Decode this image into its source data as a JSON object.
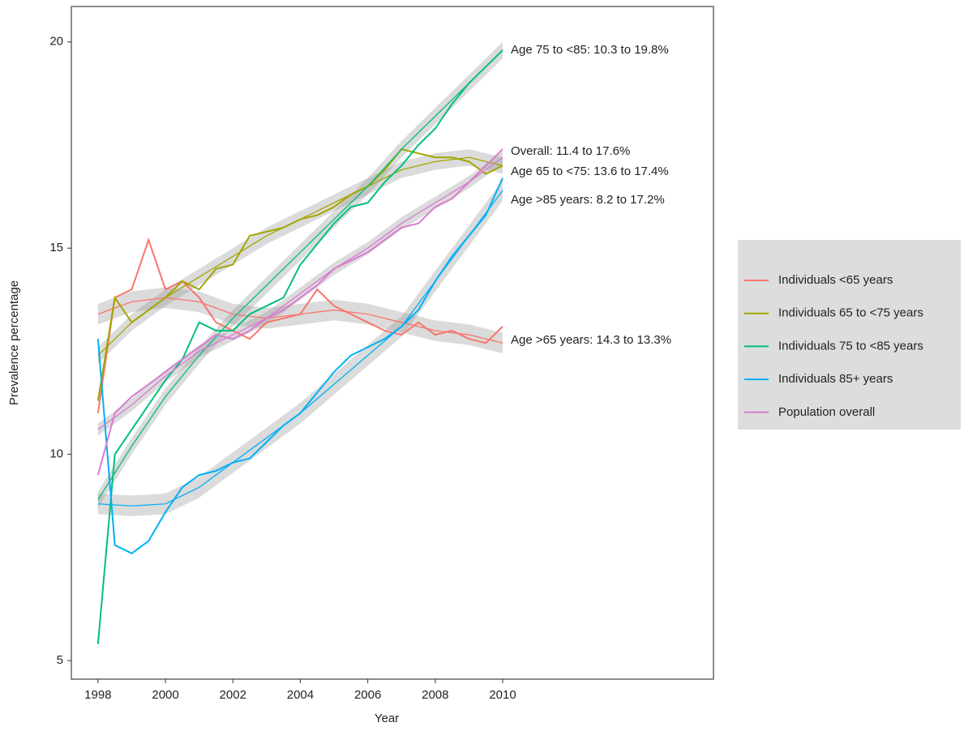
{
  "chart_data": {
    "type": "line",
    "x_label": "Year",
    "y_label": "Prevalence percentage",
    "x": [
      1998,
      1998.5,
      1999,
      1999.5,
      2000,
      2000.5,
      2001,
      2001.5,
      2002,
      2002.5,
      2003,
      2003.5,
      2004,
      2004.5,
      2005,
      2005.5,
      2006,
      2006.5,
      2007,
      2007.5,
      2008,
      2008.5,
      2009,
      2009.5,
      2010
    ],
    "smooth_x": [
      1998,
      1999,
      2000,
      2001,
      2002,
      2003,
      2004,
      2005,
      2006,
      2007,
      2008,
      2009,
      2010
    ],
    "series": [
      {
        "name": "Individuals <65 years",
        "color": "#F8766D",
        "values": [
          11.0,
          13.8,
          14.0,
          15.2,
          14.0,
          14.2,
          13.8,
          13.2,
          13.0,
          12.8,
          13.2,
          13.3,
          13.4,
          14.0,
          13.6,
          13.4,
          13.2,
          13.0,
          12.9,
          13.2,
          12.9,
          13.0,
          12.8,
          12.7,
          13.1
        ],
        "smooth": [
          13.4,
          13.7,
          13.8,
          13.7,
          13.4,
          13.3,
          13.4,
          13.5,
          13.4,
          13.2,
          13.0,
          12.9,
          12.7
        ],
        "smooth_se": 0.25
      },
      {
        "name": "Individuals 65 to <75 years",
        "color": "#A3A500",
        "values": [
          11.3,
          13.8,
          13.2,
          13.5,
          13.8,
          14.2,
          14.0,
          14.5,
          14.6,
          15.3,
          15.4,
          15.5,
          15.7,
          15.8,
          16.0,
          16.3,
          16.5,
          16.9,
          17.4,
          17.3,
          17.2,
          17.2,
          17.1,
          16.8,
          17.0
        ],
        "smooth": [
          12.4,
          13.2,
          13.8,
          14.3,
          14.8,
          15.3,
          15.7,
          16.1,
          16.5,
          16.9,
          17.1,
          17.2,
          17.0
        ],
        "smooth_se": 0.2
      },
      {
        "name": "Individuals 75 to <85 years",
        "color": "#00BF7D",
        "values": [
          5.4,
          10.0,
          10.6,
          11.2,
          11.8,
          12.3,
          13.2,
          13.0,
          13.0,
          13.4,
          13.6,
          13.8,
          14.6,
          15.1,
          15.6,
          16.0,
          16.1,
          16.6,
          17.0,
          17.5,
          17.9,
          18.5,
          19.0,
          19.4,
          19.8
        ],
        "smooth": [
          8.9,
          10.2,
          11.4,
          12.4,
          13.3,
          14.1,
          14.9,
          15.7,
          16.5,
          17.4,
          18.2,
          19.0,
          19.8
        ],
        "smooth_se": 0.2
      },
      {
        "name": "Individuals 85+ years",
        "color": "#00B0F6",
        "values": [
          12.8,
          7.8,
          7.6,
          7.9,
          8.6,
          9.2,
          9.5,
          9.6,
          9.8,
          9.9,
          10.3,
          10.7,
          11.0,
          11.5,
          12.0,
          12.4,
          12.6,
          12.8,
          13.1,
          13.5,
          14.2,
          14.8,
          15.3,
          15.8,
          16.7
        ],
        "smooth": [
          8.8,
          8.75,
          8.8,
          9.2,
          9.8,
          10.4,
          11.0,
          11.7,
          12.4,
          13.1,
          14.2,
          15.3,
          16.4
        ],
        "smooth_se": 0.25
      },
      {
        "name": "Population overall",
        "color": "#D97BD0",
        "values": [
          9.5,
          11.0,
          11.4,
          11.7,
          12.0,
          12.3,
          12.6,
          12.9,
          12.8,
          13.0,
          13.3,
          13.5,
          13.8,
          14.1,
          14.5,
          14.7,
          14.9,
          15.2,
          15.5,
          15.6,
          16.0,
          16.2,
          16.6,
          17.0,
          17.4
        ],
        "smooth": [
          10.6,
          11.2,
          11.9,
          12.5,
          12.9,
          13.3,
          13.9,
          14.5,
          15.0,
          15.6,
          16.1,
          16.6,
          17.2
        ],
        "smooth_se": 0.15
      }
    ],
    "annotations": [
      "Age 75 to <85: 10.3 to 19.8%",
      "Overall: 11.4 to 17.6%",
      "Age 65 to <75: 13.6 to 17.4%",
      "Age >85 years: 8.2 to 17.2%",
      "Age >65 years: 14.3 to 13.3%"
    ],
    "xlim": [
      1997.21,
      2016.25
    ],
    "ylim": [
      4.55,
      20.86
    ],
    "xticks": [
      1998,
      2000,
      2002,
      2004,
      2006,
      2008,
      2010
    ],
    "yticks": [
      5,
      10,
      15,
      20
    ]
  }
}
